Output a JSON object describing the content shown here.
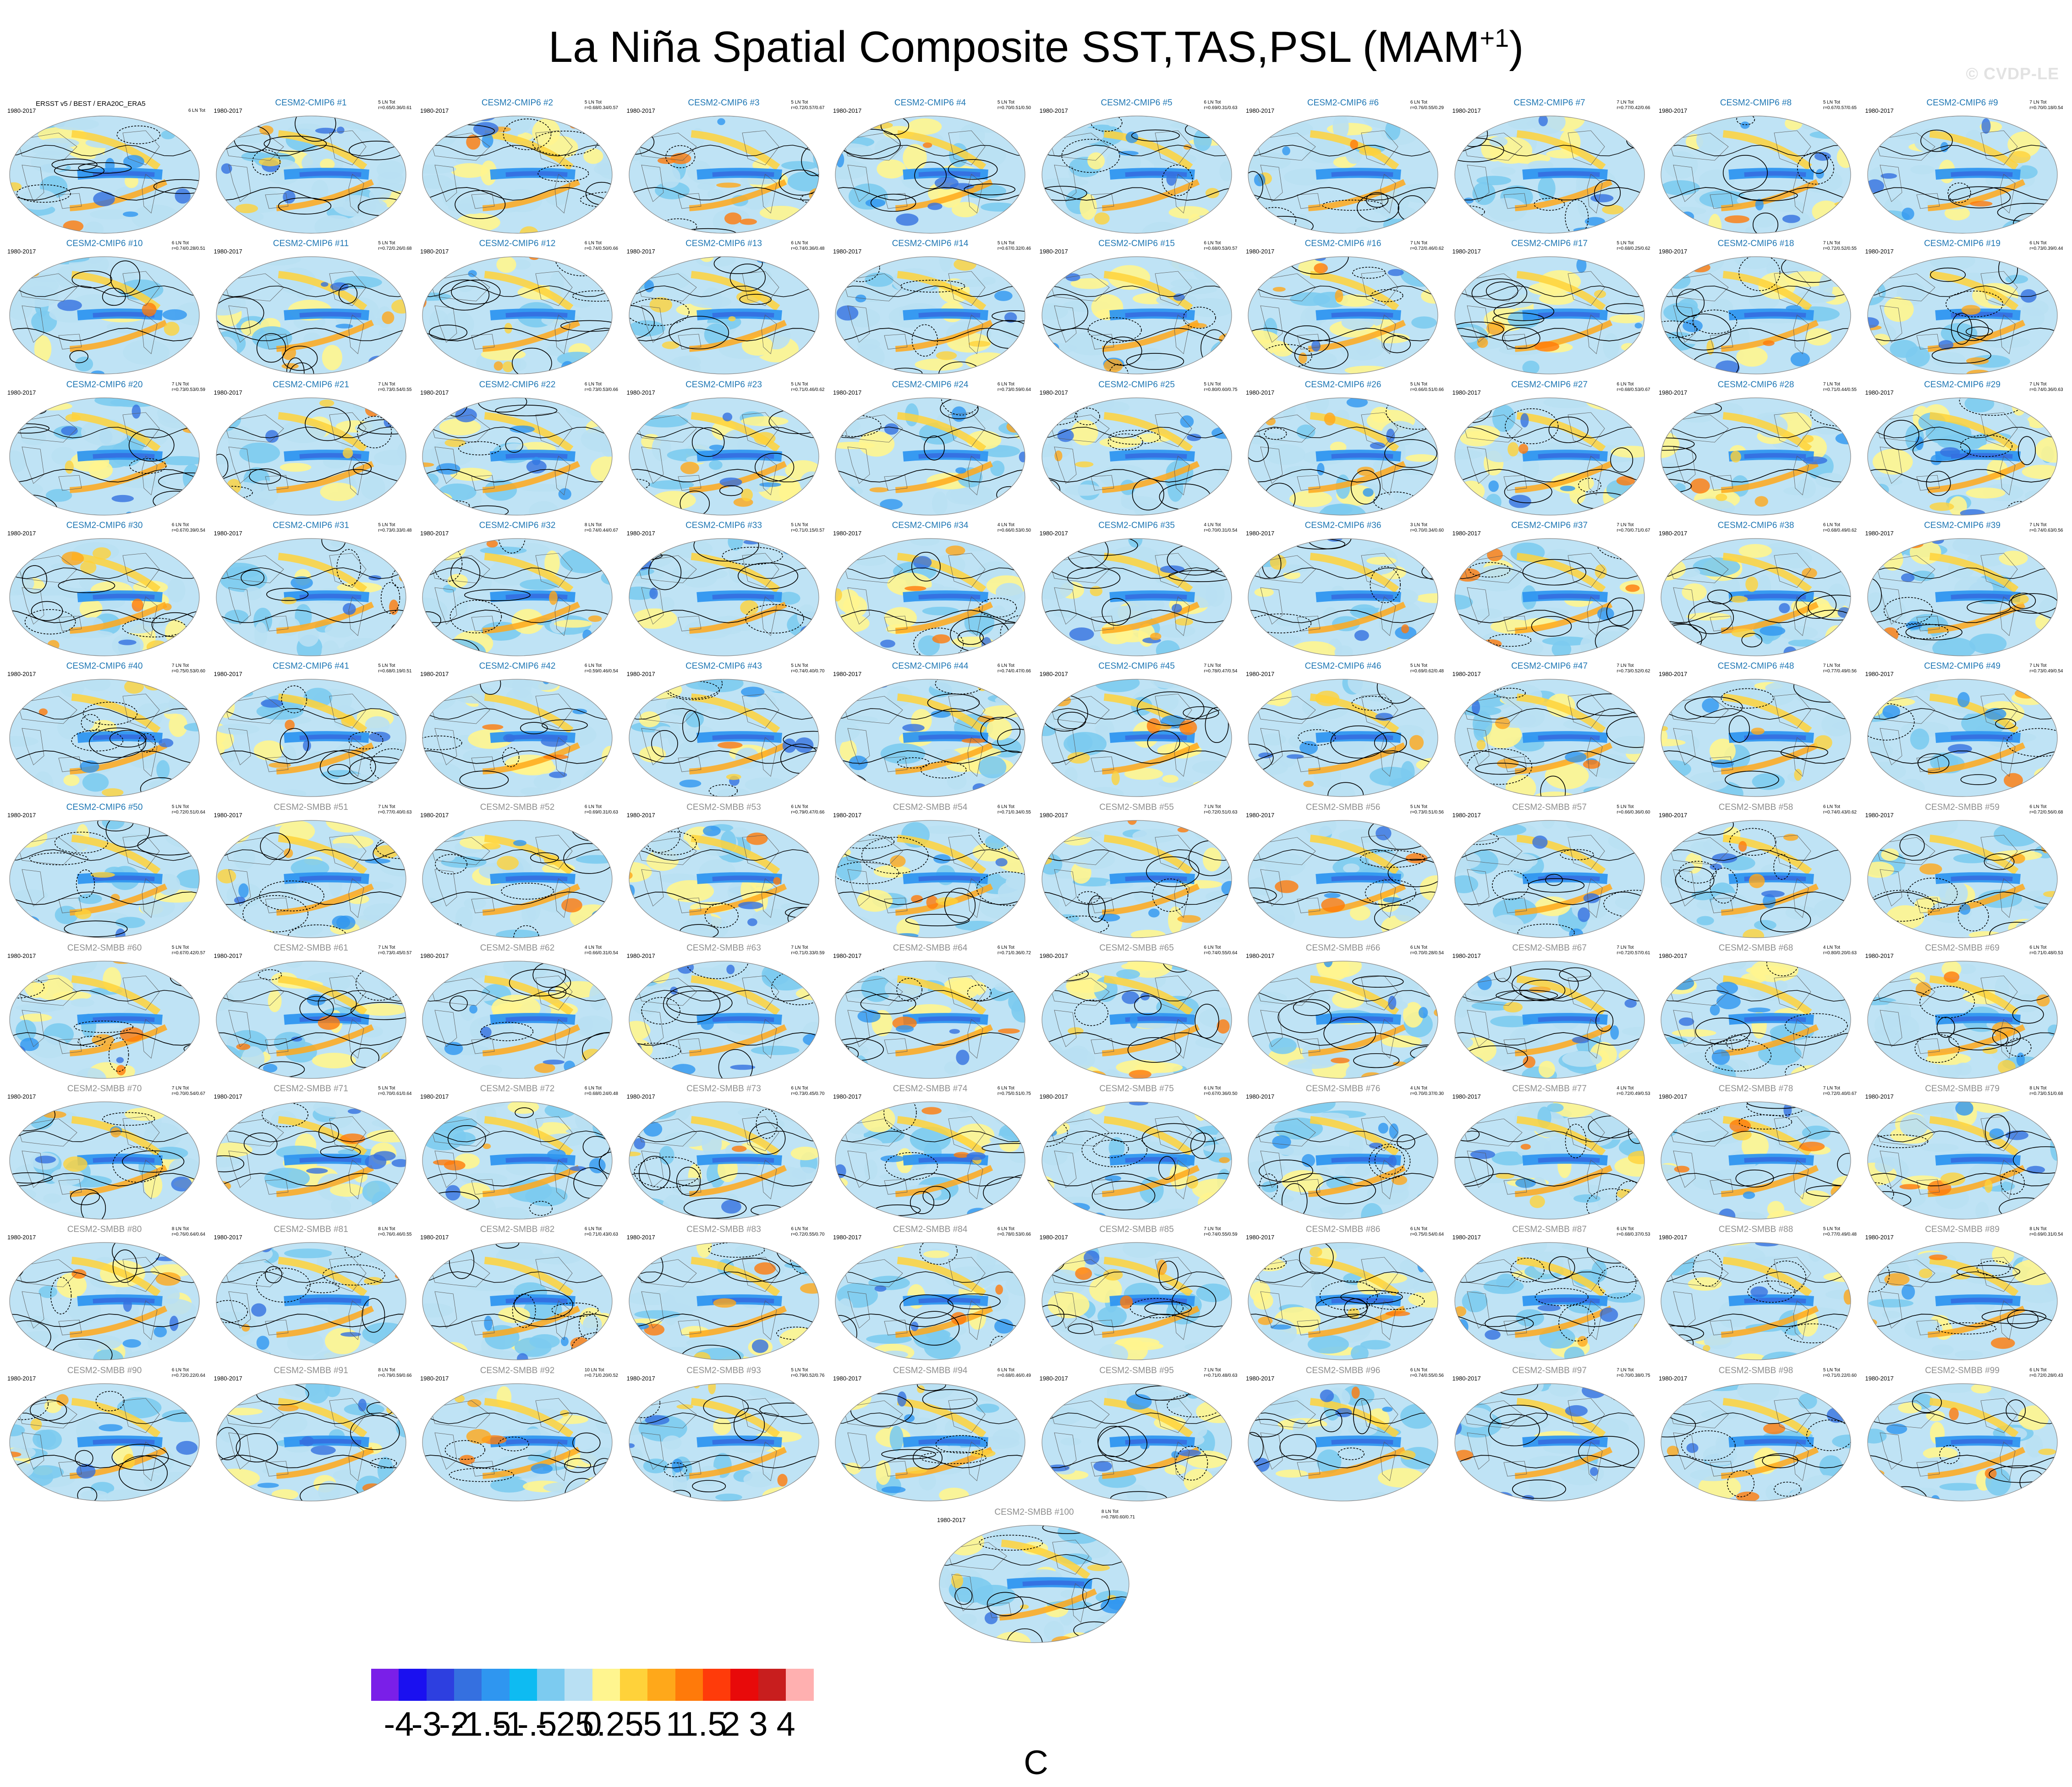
{
  "title": {
    "main": "La Niña Spatial Composite SST,TAS,PSL (MAM",
    "sup": "+1",
    "close": ")"
  },
  "watermark": "© CVDP-LE",
  "colors": {
    "cmip6_title": "#1f77b4",
    "smbb_title": "#8e8e8e",
    "obs_title": "#000000",
    "ocean_base": "#bfe3f5",
    "map_outline": "#888888",
    "contour": "#000000"
  },
  "panels": [
    {
      "title": "ERSST v5 / BEST / ERA20C_ERA5",
      "period": "1980-2017",
      "stats": [
        "6 LN Tot"
      ],
      "group": "obs"
    },
    {
      "title": "CESM2-CMIP6 #1",
      "period": "1980-2017",
      "stats": [
        "5 LN Tot",
        "r=0.65/0.36/0.61"
      ],
      "group": "cmip6"
    },
    {
      "title": "CESM2-CMIP6 #2",
      "period": "1980-2017",
      "stats": [
        "5 LN Tot",
        "r=0.68/0.34/0.57"
      ],
      "group": "cmip6"
    },
    {
      "title": "CESM2-CMIP6 #3",
      "period": "1980-2017",
      "stats": [
        "5 LN Tot",
        "r=0.72/0.57/0.67"
      ],
      "group": "cmip6"
    },
    {
      "title": "CESM2-CMIP6 #4",
      "period": "1980-2017",
      "stats": [
        "5 LN Tot",
        "r=0.70/0.51/0.50"
      ],
      "group": "cmip6"
    },
    {
      "title": "CESM2-CMIP6 #5",
      "period": "1980-2017",
      "stats": [
        "6 LN Tot",
        "r=0.69/0.31/0.63"
      ],
      "group": "cmip6"
    },
    {
      "title": "CESM2-CMIP6 #6",
      "period": "1980-2017",
      "stats": [
        "6 LN Tot",
        "r=0.76/0.55/0.29"
      ],
      "group": "cmip6"
    },
    {
      "title": "CESM2-CMIP6 #7",
      "period": "1980-2017",
      "stats": [
        "7 LN Tot",
        "r=0.77/0.42/0.66"
      ],
      "group": "cmip6"
    },
    {
      "title": "CESM2-CMIP6 #8",
      "period": "1980-2017",
      "stats": [
        "5 LN Tot",
        "r=0.67/0.57/0.65"
      ],
      "group": "cmip6"
    },
    {
      "title": "CESM2-CMIP6 #9",
      "period": "1980-2017",
      "stats": [
        "7 LN Tot",
        "r=0.70/0.18/0.54"
      ],
      "group": "cmip6"
    },
    {
      "title": "CESM2-CMIP6 #10",
      "period": "1980-2017",
      "stats": [
        "6 LN Tot",
        "r=0.74/0.28/0.51"
      ],
      "group": "cmip6"
    },
    {
      "title": "CESM2-CMIP6 #11",
      "period": "1980-2017",
      "stats": [
        "5 LN Tot",
        "r=0.72/0.26/0.68"
      ],
      "group": "cmip6"
    },
    {
      "title": "CESM2-CMIP6 #12",
      "period": "1980-2017",
      "stats": [
        "6 LN Tot",
        "r=0.74/0.50/0.66"
      ],
      "group": "cmip6"
    },
    {
      "title": "CESM2-CMIP6 #13",
      "period": "1980-2017",
      "stats": [
        "6 LN Tot",
        "r=0.74/0.36/0.48"
      ],
      "group": "cmip6"
    },
    {
      "title": "CESM2-CMIP6 #14",
      "period": "1980-2017",
      "stats": [
        "5 LN Tot",
        "r=0.67/0.32/0.46"
      ],
      "group": "cmip6"
    },
    {
      "title": "CESM2-CMIP6 #15",
      "period": "1980-2017",
      "stats": [
        "6 LN Tot",
        "r=0.68/0.53/0.57"
      ],
      "group": "cmip6"
    },
    {
      "title": "CESM2-CMIP6 #16",
      "period": "1980-2017",
      "stats": [
        "7 LN Tot",
        "r=0.72/0.46/0.62"
      ],
      "group": "cmip6"
    },
    {
      "title": "CESM2-CMIP6 #17",
      "period": "1980-2017",
      "stats": [
        "5 LN Tot",
        "r=0.68/0.25/0.62"
      ],
      "group": "cmip6"
    },
    {
      "title": "CESM2-CMIP6 #18",
      "period": "1980-2017",
      "stats": [
        "7 LN Tot",
        "r=0.72/0.52/0.55"
      ],
      "group": "cmip6"
    },
    {
      "title": "CESM2-CMIP6 #19",
      "period": "1980-2017",
      "stats": [
        "6 LN Tot",
        "r=0.73/0.39/0.44"
      ],
      "group": "cmip6"
    },
    {
      "title": "CESM2-CMIP6 #20",
      "period": "1980-2017",
      "stats": [
        "7 LN Tot",
        "r=0.73/0.53/0.59"
      ],
      "group": "cmip6"
    },
    {
      "title": "CESM2-CMIP6 #21",
      "period": "1980-2017",
      "stats": [
        "7 LN Tot",
        "r=0.73/0.54/0.55"
      ],
      "group": "cmip6"
    },
    {
      "title": "CESM2-CMIP6 #22",
      "period": "1980-2017",
      "stats": [
        "6 LN Tot",
        "r=0.73/0.53/0.66"
      ],
      "group": "cmip6"
    },
    {
      "title": "CESM2-CMIP6 #23",
      "period": "1980-2017",
      "stats": [
        "5 LN Tot",
        "r=0.71/0.46/0.62"
      ],
      "group": "cmip6"
    },
    {
      "title": "CESM2-CMIP6 #24",
      "period": "1980-2017",
      "stats": [
        "6 LN Tot",
        "r=0.73/0.59/0.64"
      ],
      "group": "cmip6"
    },
    {
      "title": "CESM2-CMIP6 #25",
      "period": "1980-2017",
      "stats": [
        "5 LN Tot",
        "r=0.80/0.60/0.75"
      ],
      "group": "cmip6"
    },
    {
      "title": "CESM2-CMIP6 #26",
      "period": "1980-2017",
      "stats": [
        "5 LN Tot",
        "r=0.66/0.51/0.66"
      ],
      "group": "cmip6"
    },
    {
      "title": "CESM2-CMIP6 #27",
      "period": "1980-2017",
      "stats": [
        "6 LN Tot",
        "r=0.68/0.53/0.67"
      ],
      "group": "cmip6"
    },
    {
      "title": "CESM2-CMIP6 #28",
      "period": "1980-2017",
      "stats": [
        "7 LN Tot",
        "r=0.71/0.44/0.55"
      ],
      "group": "cmip6"
    },
    {
      "title": "CESM2-CMIP6 #29",
      "period": "1980-2017",
      "stats": [
        "7 LN Tot",
        "r=0.74/0.36/0.63"
      ],
      "group": "cmip6"
    },
    {
      "title": "CESM2-CMIP6 #30",
      "period": "1980-2017",
      "stats": [
        "6 LN Tot",
        "r=0.67/0.39/0.54"
      ],
      "group": "cmip6"
    },
    {
      "title": "CESM2-CMIP6 #31",
      "period": "1980-2017",
      "stats": [
        "5 LN Tot",
        "r=0.73/0.33/0.48"
      ],
      "group": "cmip6"
    },
    {
      "title": "CESM2-CMIP6 #32",
      "period": "1980-2017",
      "stats": [
        "8 LN Tot",
        "r=0.74/0.44/0.67"
      ],
      "group": "cmip6"
    },
    {
      "title": "CESM2-CMIP6 #33",
      "period": "1980-2017",
      "stats": [
        "5 LN Tot",
        "r=0.71/0.15/0.57"
      ],
      "group": "cmip6"
    },
    {
      "title": "CESM2-CMIP6 #34",
      "period": "1980-2017",
      "stats": [
        "4 LN Tot",
        "r=0.66/0.53/0.50"
      ],
      "group": "cmip6"
    },
    {
      "title": "CESM2-CMIP6 #35",
      "period": "1980-2017",
      "stats": [
        "4 LN Tot",
        "r=0.70/0.31/0.54"
      ],
      "group": "cmip6"
    },
    {
      "title": "CESM2-CMIP6 #36",
      "period": "1980-2017",
      "stats": [
        "3 LN Tot",
        "r=0.70/0.34/0.60"
      ],
      "group": "cmip6"
    },
    {
      "title": "CESM2-CMIP6 #37",
      "period": "1980-2017",
      "stats": [
        "7 LN Tot",
        "r=0.70/0.71/0.67"
      ],
      "group": "cmip6"
    },
    {
      "title": "CESM2-CMIP6 #38",
      "period": "1980-2017",
      "stats": [
        "6 LN Tot",
        "r=0.68/0.49/0.62"
      ],
      "group": "cmip6"
    },
    {
      "title": "CESM2-CMIP6 #39",
      "period": "1980-2017",
      "stats": [
        "7 LN Tot",
        "r=0.74/0.63/0.56"
      ],
      "group": "cmip6"
    },
    {
      "title": "CESM2-CMIP6 #40",
      "period": "1980-2017",
      "stats": [
        "7 LN Tot",
        "r=0.75/0.53/0.60"
      ],
      "group": "cmip6"
    },
    {
      "title": "CESM2-CMIP6 #41",
      "period": "1980-2017",
      "stats": [
        "5 LN Tot",
        "r=0.68/0.19/0.51"
      ],
      "group": "cmip6"
    },
    {
      "title": "CESM2-CMIP6 #42",
      "period": "1980-2017",
      "stats": [
        "6 LN Tot",
        "r=0.59/0.46/0.54"
      ],
      "group": "cmip6"
    },
    {
      "title": "CESM2-CMIP6 #43",
      "period": "1980-2017",
      "stats": [
        "5 LN Tot",
        "r=0.74/0.40/0.70"
      ],
      "group": "cmip6"
    },
    {
      "title": "CESM2-CMIP6 #44",
      "period": "1980-2017",
      "stats": [
        "6 LN Tot",
        "r=0.74/0.47/0.66"
      ],
      "group": "cmip6"
    },
    {
      "title": "CESM2-CMIP6 #45",
      "period": "1980-2017",
      "stats": [
        "7 LN Tot",
        "r=0.78/0.47/0.54"
      ],
      "group": "cmip6"
    },
    {
      "title": "CESM2-CMIP6 #46",
      "period": "1980-2017",
      "stats": [
        "5 LN Tot",
        "r=0.69/0.62/0.48"
      ],
      "group": "cmip6"
    },
    {
      "title": "CESM2-CMIP6 #47",
      "period": "1980-2017",
      "stats": [
        "7 LN Tot",
        "r=0.73/0.52/0.62"
      ],
      "group": "cmip6"
    },
    {
      "title": "CESM2-CMIP6 #48",
      "period": "1980-2017",
      "stats": [
        "7 LN Tot",
        "r=0.77/0.49/0.56"
      ],
      "group": "cmip6"
    },
    {
      "title": "CESM2-CMIP6 #49",
      "period": "1980-2017",
      "stats": [
        "7 LN Tot",
        "r=0.73/0.49/0.54"
      ],
      "group": "cmip6"
    },
    {
      "title": "CESM2-CMIP6 #50",
      "period": "1980-2017",
      "stats": [
        "5 LN Tot",
        "r=0.72/0.51/0.64"
      ],
      "group": "cmip6"
    },
    {
      "title": "CESM2-SMBB #51",
      "period": "1980-2017",
      "stats": [
        "7 LN Tot",
        "r=0.77/0.40/0.63"
      ],
      "group": "smbb"
    },
    {
      "title": "CESM2-SMBB #52",
      "period": "1980-2017",
      "stats": [
        "6 LN Tot",
        "r=0.69/0.31/0.63"
      ],
      "group": "smbb"
    },
    {
      "title": "CESM2-SMBB #53",
      "period": "1980-2017",
      "stats": [
        "6 LN Tot",
        "r=0.79/0.47/0.66"
      ],
      "group": "smbb"
    },
    {
      "title": "CESM2-SMBB #54",
      "period": "1980-2017",
      "stats": [
        "6 LN Tot",
        "r=0.71/0.34/0.55"
      ],
      "group": "smbb"
    },
    {
      "title": "CESM2-SMBB #55",
      "period": "1980-2017",
      "stats": [
        "7 LN Tot",
        "r=0.72/0.51/0.63"
      ],
      "group": "smbb"
    },
    {
      "title": "CESM2-SMBB #56",
      "period": "1980-2017",
      "stats": [
        "5 LN Tot",
        "r=0.73/0.51/0.56"
      ],
      "group": "smbb"
    },
    {
      "title": "CESM2-SMBB #57",
      "period": "1980-2017",
      "stats": [
        "5 LN Tot",
        "r=0.66/0.36/0.60"
      ],
      "group": "smbb"
    },
    {
      "title": "CESM2-SMBB #58",
      "period": "1980-2017",
      "stats": [
        "6 LN Tot",
        "r=0.74/0.43/0.62"
      ],
      "group": "smbb"
    },
    {
      "title": "CESM2-SMBB #59",
      "period": "1980-2017",
      "stats": [
        "6 LN Tot",
        "r=0.72/0.56/0.68"
      ],
      "group": "smbb"
    },
    {
      "title": "CESM2-SMBB #60",
      "period": "1980-2017",
      "stats": [
        "5 LN Tot",
        "r=0.67/0.42/0.57"
      ],
      "group": "smbb"
    },
    {
      "title": "CESM2-SMBB #61",
      "period": "1980-2017",
      "stats": [
        "7 LN Tot",
        "r=0.73/0.45/0.57"
      ],
      "group": "smbb"
    },
    {
      "title": "CESM2-SMBB #62",
      "period": "1980-2017",
      "stats": [
        "4 LN Tot",
        "r=0.66/0.31/0.54"
      ],
      "group": "smbb"
    },
    {
      "title": "CESM2-SMBB #63",
      "period": "1980-2017",
      "stats": [
        "7 LN Tot",
        "r=0.71/0.33/0.59"
      ],
      "group": "smbb"
    },
    {
      "title": "CESM2-SMBB #64",
      "period": "1980-2017",
      "stats": [
        "6 LN Tot",
        "r=0.71/0.36/0.72"
      ],
      "group": "smbb"
    },
    {
      "title": "CESM2-SMBB #65",
      "period": "1980-2017",
      "stats": [
        "6 LN Tot",
        "r=0.74/0.55/0.64"
      ],
      "group": "smbb"
    },
    {
      "title": "CESM2-SMBB #66",
      "period": "1980-2017",
      "stats": [
        "6 LN Tot",
        "r=0.70/0.28/0.54"
      ],
      "group": "smbb"
    },
    {
      "title": "CESM2-SMBB #67",
      "period": "1980-2017",
      "stats": [
        "7 LN Tot",
        "r=0.72/0.57/0.61"
      ],
      "group": "smbb"
    },
    {
      "title": "CESM2-SMBB #68",
      "period": "1980-2017",
      "stats": [
        "4 LN Tot",
        "r=0.80/0.20/0.63"
      ],
      "group": "smbb"
    },
    {
      "title": "CESM2-SMBB #69",
      "period": "1980-2017",
      "stats": [
        "6 LN Tot",
        "r=0.71/0.48/0.53"
      ],
      "group": "smbb"
    },
    {
      "title": "CESM2-SMBB #70",
      "period": "1980-2017",
      "stats": [
        "7 LN Tot",
        "r=0.70/0.54/0.67"
      ],
      "group": "smbb"
    },
    {
      "title": "CESM2-SMBB #71",
      "period": "1980-2017",
      "stats": [
        "5 LN Tot",
        "r=0.70/0.61/0.64"
      ],
      "group": "smbb"
    },
    {
      "title": "CESM2-SMBB #72",
      "period": "1980-2017",
      "stats": [
        "6 LN Tot",
        "r=0.68/0.24/0.48"
      ],
      "group": "smbb"
    },
    {
      "title": "CESM2-SMBB #73",
      "period": "1980-2017",
      "stats": [
        "6 LN Tot",
        "r=0.73/0.45/0.70"
      ],
      "group": "smbb"
    },
    {
      "title": "CESM2-SMBB #74",
      "period": "1980-2017",
      "stats": [
        "6 LN Tot",
        "r=0.75/0.51/0.75"
      ],
      "group": "smbb"
    },
    {
      "title": "CESM2-SMBB #75",
      "period": "1980-2017",
      "stats": [
        "6 LN Tot",
        "r=0.67/0.36/0.50"
      ],
      "group": "smbb"
    },
    {
      "title": "CESM2-SMBB #76",
      "period": "1980-2017",
      "stats": [
        "4 LN Tot",
        "r=0.70/0.37/0.30"
      ],
      "group": "smbb"
    },
    {
      "title": "CESM2-SMBB #77",
      "period": "1980-2017",
      "stats": [
        "4 LN Tot",
        "r=0.72/0.49/0.53"
      ],
      "group": "smbb"
    },
    {
      "title": "CESM2-SMBB #78",
      "period": "1980-2017",
      "stats": [
        "7 LN Tot",
        "r=0.72/0.40/0.67"
      ],
      "group": "smbb"
    },
    {
      "title": "CESM2-SMBB #79",
      "period": "1980-2017",
      "stats": [
        "8 LN Tot",
        "r=0.73/0.51/0.68"
      ],
      "group": "smbb"
    },
    {
      "title": "CESM2-SMBB #80",
      "period": "1980-2017",
      "stats": [
        "8 LN Tot",
        "r=0.76/0.64/0.64"
      ],
      "group": "smbb"
    },
    {
      "title": "CESM2-SMBB #81",
      "period": "1980-2017",
      "stats": [
        "8 LN Tot",
        "r=0.76/0.46/0.55"
      ],
      "group": "smbb"
    },
    {
      "title": "CESM2-SMBB #82",
      "period": "1980-2017",
      "stats": [
        "6 LN Tot",
        "r=0.71/0.43/0.63"
      ],
      "group": "smbb"
    },
    {
      "title": "CESM2-SMBB #83",
      "period": "1980-2017",
      "stats": [
        "6 LN Tot",
        "r=0.72/0.55/0.70"
      ],
      "group": "smbb"
    },
    {
      "title": "CESM2-SMBB #84",
      "period": "1980-2017",
      "stats": [
        "6 LN Tot",
        "r=0.78/0.53/0.66"
      ],
      "group": "smbb"
    },
    {
      "title": "CESM2-SMBB #85",
      "period": "1980-2017",
      "stats": [
        "7 LN Tot",
        "r=0.74/0.55/0.59"
      ],
      "group": "smbb"
    },
    {
      "title": "CESM2-SMBB #86",
      "period": "1980-2017",
      "stats": [
        "6 LN Tot",
        "r=0.75/0.54/0.64"
      ],
      "group": "smbb"
    },
    {
      "title": "CESM2-SMBB #87",
      "period": "1980-2017",
      "stats": [
        "6 LN Tot",
        "r=0.68/0.37/0.53"
      ],
      "group": "smbb"
    },
    {
      "title": "CESM2-SMBB #88",
      "period": "1980-2017",
      "stats": [
        "5 LN Tot",
        "r=0.77/0.49/0.48"
      ],
      "group": "smbb"
    },
    {
      "title": "CESM2-SMBB #89",
      "period": "1980-2017",
      "stats": [
        "8 LN Tot",
        "r=0.69/0.31/0.54"
      ],
      "group": "smbb"
    },
    {
      "title": "CESM2-SMBB #90",
      "period": "1980-2017",
      "stats": [
        "6 LN Tot",
        "r=0.72/0.22/0.64"
      ],
      "group": "smbb"
    },
    {
      "title": "CESM2-SMBB #91",
      "period": "1980-2017",
      "stats": [
        "8 LN Tot",
        "r=0.79/0.59/0.66"
      ],
      "group": "smbb"
    },
    {
      "title": "CESM2-SMBB #92",
      "period": "1980-2017",
      "stats": [
        "10 LN Tot",
        "r=0.71/0.20/0.52"
      ],
      "group": "smbb"
    },
    {
      "title": "CESM2-SMBB #93",
      "period": "1980-2017",
      "stats": [
        "5 LN Tot",
        "r=0.79/0.52/0.76"
      ],
      "group": "smbb"
    },
    {
      "title": "CESM2-SMBB #94",
      "period": "1980-2017",
      "stats": [
        "6 LN Tot",
        "r=0.68/0.46/0.49"
      ],
      "group": "smbb"
    },
    {
      "title": "CESM2-SMBB #95",
      "period": "1980-2017",
      "stats": [
        "7 LN Tot",
        "r=0.71/0.48/0.63"
      ],
      "group": "smbb"
    },
    {
      "title": "CESM2-SMBB #96",
      "period": "1980-2017",
      "stats": [
        "6 LN Tot",
        "r=0.74/0.55/0.56"
      ],
      "group": "smbb"
    },
    {
      "title": "CESM2-SMBB #97",
      "period": "1980-2017",
      "stats": [
        "7 LN Tot",
        "r=0.70/0.38/0.75"
      ],
      "group": "smbb"
    },
    {
      "title": "CESM2-SMBB #98",
      "period": "1980-2017",
      "stats": [
        "5 LN Tot",
        "r=0.71/0.22/0.60"
      ],
      "group": "smbb"
    },
    {
      "title": "CESM2-SMBB #99",
      "period": "1980-2017",
      "stats": [
        "6 LN Tot",
        "r=0.72/0.28/0.43"
      ],
      "group": "smbb"
    },
    {
      "title": "CESM2-SMBB #100",
      "period": "1980-2017",
      "stats": [
        "8 LN Tot",
        "r=0.78/0.60/0.71"
      ],
      "group": "smbb"
    }
  ],
  "chart_data": {
    "type": "heatmap",
    "title": "La Niña Spatial Composite SST,TAS,PSL (MAM+1)",
    "panel_grid": {
      "rows": 10,
      "cols": 10,
      "extra_centered": 1
    },
    "colorbar": {
      "unit": "C",
      "tick_labels": [
        "-4",
        "-3",
        "-2",
        "-1.5",
        "-1",
        "-.5",
        "-.25",
        "0",
        ".25",
        ".5",
        "1",
        "1.5",
        "2",
        "3",
        "4"
      ],
      "colors": [
        "#7a1fe8",
        "#1a10f0",
        "#2d3fe0",
        "#3570e0",
        "#2f96f0",
        "#0ebbf2",
        "#7ccbf0",
        "#b9e0f3",
        "#fff58f",
        "#ffd23a",
        "#ffa81a",
        "#ff7a0a",
        "#ff3b0a",
        "#e80a0a",
        "#c81e1e",
        "#ffb0b0"
      ]
    }
  }
}
